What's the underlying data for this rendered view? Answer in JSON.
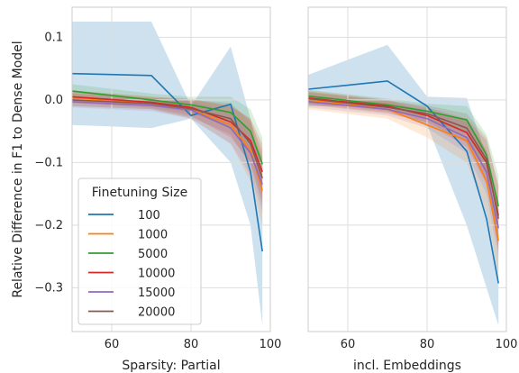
{
  "chart_data": {
    "type": "line",
    "ylabel": "Relative Difference in F1 to Dense Model",
    "ylim": [
      -0.37,
      0.148
    ],
    "yticks": [
      0.1,
      0.0,
      -0.1,
      -0.2,
      -0.3
    ],
    "ytick_labels": [
      "0.1",
      "0.0",
      "−0.1",
      "−0.2",
      "−0.3"
    ],
    "xlim": [
      50,
      100
    ],
    "xticks": [
      60,
      80,
      100
    ],
    "xtick_labels": [
      "60",
      "80",
      "100"
    ],
    "grid": true,
    "legend": {
      "title": "Finetuning Size",
      "placement": "lower-left",
      "panel": 0
    },
    "colors": {
      "100": "#1f77b4",
      "1000": "#ff7f0e",
      "5000": "#2ca02c",
      "10000": "#d62728",
      "15000": "#9467bd",
      "20000": "#8c564b"
    },
    "panels": [
      {
        "xlabel": "Sparsity: Partial",
        "x": [
          50,
          70,
          80,
          90,
          95,
          98
        ],
        "series": [
          {
            "name": "100",
            "values": [
              0.042,
              0.039,
              -0.025,
              -0.007,
              -0.115,
              -0.242
            ],
            "lower": [
              -0.04,
              -0.045,
              -0.03,
              -0.1,
              -0.2,
              -0.36
            ],
            "upper": [
              0.125,
              0.125,
              -0.01,
              0.085,
              -0.03,
              -0.12
            ]
          },
          {
            "name": "1000",
            "values": [
              0.003,
              -0.005,
              -0.015,
              -0.04,
              -0.08,
              -0.145
            ],
            "lower": [
              -0.01,
              -0.015,
              -0.03,
              -0.07,
              -0.13,
              -0.2
            ],
            "upper": [
              0.015,
              0.005,
              0.0,
              -0.01,
              -0.03,
              -0.09
            ]
          },
          {
            "name": "5000",
            "values": [
              0.014,
              0.0,
              -0.008,
              -0.02,
              -0.05,
              -0.103
            ],
            "lower": [
              0.003,
              -0.01,
              -0.02,
              -0.045,
              -0.085,
              -0.15
            ],
            "upper": [
              0.025,
              0.01,
              0.005,
              0.005,
              -0.015,
              -0.06
            ]
          },
          {
            "name": "10000",
            "values": [
              0.005,
              -0.004,
              -0.012,
              -0.035,
              -0.065,
              -0.115
            ],
            "lower": [
              -0.005,
              -0.013,
              -0.025,
              -0.06,
              -0.1,
              -0.16
            ],
            "upper": [
              0.015,
              0.005,
              0.002,
              -0.01,
              -0.03,
              -0.07
            ]
          },
          {
            "name": "15000",
            "values": [
              -0.003,
              -0.009,
              -0.016,
              -0.045,
              -0.085,
              -0.135
            ],
            "lower": [
              -0.012,
              -0.018,
              -0.03,
              -0.07,
              -0.12,
              -0.18
            ],
            "upper": [
              0.006,
              0.0,
              -0.002,
              -0.02,
              -0.05,
              -0.09
            ]
          },
          {
            "name": "20000",
            "values": [
              0.0,
              -0.006,
              -0.014,
              -0.03,
              -0.07,
              -0.125
            ],
            "lower": [
              -0.01,
              -0.015,
              -0.028,
              -0.055,
              -0.105,
              -0.17
            ],
            "upper": [
              0.01,
              0.003,
              0.0,
              -0.005,
              -0.035,
              -0.08
            ]
          }
        ]
      },
      {
        "xlabel": "incl. Embeddings",
        "x": [
          50,
          70,
          80,
          90,
          95,
          98
        ],
        "series": [
          {
            "name": "100",
            "values": [
              0.017,
              0.03,
              -0.01,
              -0.082,
              -0.19,
              -0.293
            ],
            "lower": [
              -0.01,
              -0.01,
              -0.04,
              -0.2,
              -0.3,
              -0.36
            ],
            "upper": [
              0.04,
              0.088,
              0.005,
              0.003,
              -0.09,
              -0.22
            ]
          },
          {
            "name": "1000",
            "values": [
              0.0,
              -0.015,
              -0.04,
              -0.065,
              -0.13,
              -0.225
            ],
            "lower": [
              -0.015,
              -0.03,
              -0.06,
              -0.1,
              -0.18,
              -0.28
            ],
            "upper": [
              0.015,
              0.0,
              -0.02,
              -0.03,
              -0.08,
              -0.17
            ]
          },
          {
            "name": "5000",
            "values": [
              0.006,
              -0.008,
              -0.018,
              -0.032,
              -0.088,
              -0.17
            ],
            "lower": [
              -0.004,
              -0.018,
              -0.03,
              -0.055,
              -0.12,
              -0.22
            ],
            "upper": [
              0.016,
              0.002,
              -0.006,
              -0.01,
              -0.055,
              -0.12
            ]
          },
          {
            "name": "10000",
            "values": [
              0.003,
              -0.01,
              -0.025,
              -0.052,
              -0.1,
              -0.185
            ],
            "lower": [
              -0.007,
              -0.02,
              -0.038,
              -0.075,
              -0.135,
              -0.235
            ],
            "upper": [
              0.013,
              0.0,
              -0.012,
              -0.03,
              -0.065,
              -0.135
            ]
          },
          {
            "name": "15000",
            "values": [
              -0.003,
              -0.015,
              -0.03,
              -0.06,
              -0.115,
              -0.205
            ],
            "lower": [
              -0.012,
              -0.025,
              -0.045,
              -0.085,
              -0.15,
              -0.25
            ],
            "upper": [
              0.006,
              -0.005,
              -0.015,
              -0.035,
              -0.08,
              -0.16
            ]
          },
          {
            "name": "20000",
            "values": [
              0.002,
              -0.012,
              -0.022,
              -0.045,
              -0.095,
              -0.19
            ],
            "lower": [
              -0.008,
              -0.022,
              -0.035,
              -0.068,
              -0.13,
              -0.24
            ],
            "upper": [
              0.012,
              -0.002,
              -0.009,
              -0.022,
              -0.06,
              -0.14
            ]
          }
        ]
      }
    ]
  }
}
